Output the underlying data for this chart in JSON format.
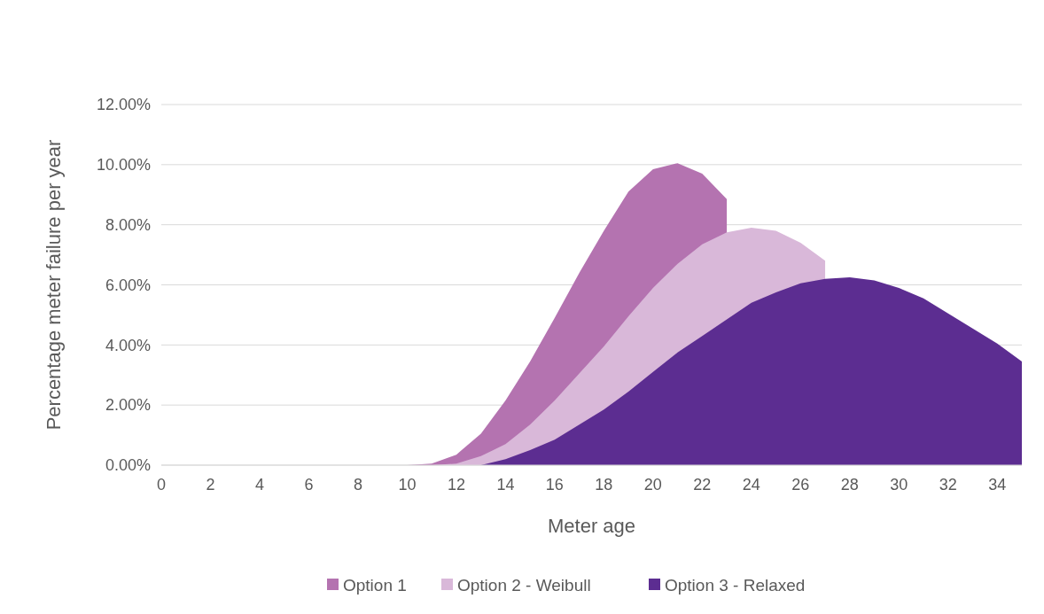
{
  "chart_data": {
    "type": "area",
    "xlabel": "Meter age",
    "ylabel": "Percentage meter failure per year",
    "x": [
      0,
      1,
      2,
      3,
      4,
      5,
      6,
      7,
      8,
      9,
      10,
      11,
      12,
      13,
      14,
      15,
      16,
      17,
      18,
      19,
      20,
      21,
      22,
      23,
      24,
      25,
      26,
      27,
      28,
      29,
      30,
      31,
      32,
      33,
      34,
      35
    ],
    "series": [
      {
        "name": "Option 1",
        "color": "#b473b0",
        "values": [
          0,
          0,
          0,
          0,
          0,
          0,
          0,
          0,
          0,
          0,
          0,
          0.05,
          0.35,
          1.05,
          2.15,
          3.45,
          4.9,
          6.4,
          7.8,
          9.1,
          9.85,
          10.05,
          9.7,
          8.85,
          null,
          null,
          null,
          null,
          null,
          null,
          null,
          null,
          null,
          null,
          null,
          null
        ]
      },
      {
        "name": "Option 2 - Weibull",
        "color": "#d9b8d9",
        "values": [
          0,
          0,
          0,
          0,
          0,
          0,
          0,
          0,
          0,
          0,
          0,
          0,
          0.05,
          0.3,
          0.7,
          1.35,
          2.15,
          3.05,
          3.95,
          4.95,
          5.9,
          6.7,
          7.35,
          7.75,
          7.9,
          7.8,
          7.4,
          6.8,
          null,
          null,
          null,
          null,
          null,
          null,
          null,
          null
        ]
      },
      {
        "name": "Option 3 - Relaxed",
        "color": "#5c2d91",
        "values": [
          0,
          0,
          0,
          0,
          0,
          0,
          0,
          0,
          0,
          0,
          0,
          0,
          0,
          0,
          0.2,
          0.5,
          0.85,
          1.35,
          1.85,
          2.45,
          3.1,
          3.75,
          4.3,
          4.85,
          5.4,
          5.75,
          6.05,
          6.2,
          6.25,
          6.15,
          5.9,
          5.55,
          5.05,
          4.55,
          4.05,
          3.45
        ]
      }
    ],
    "xlim": [
      0,
      35
    ],
    "xticks": [
      0,
      2,
      4,
      6,
      8,
      10,
      12,
      14,
      16,
      18,
      20,
      22,
      24,
      26,
      28,
      30,
      32,
      34
    ],
    "ylim": [
      0,
      12
    ],
    "yticks": [
      {
        "value": 0,
        "label": "0.00%"
      },
      {
        "value": 2,
        "label": "2.00%"
      },
      {
        "value": 4,
        "label": "4.00%"
      },
      {
        "value": 6,
        "label": "6.00%"
      },
      {
        "value": 8,
        "label": "8.00%"
      },
      {
        "value": 10,
        "label": "10.00%"
      },
      {
        "value": 12,
        "label": "12.00%"
      }
    ],
    "grid": "y",
    "legend": "bottom"
  }
}
